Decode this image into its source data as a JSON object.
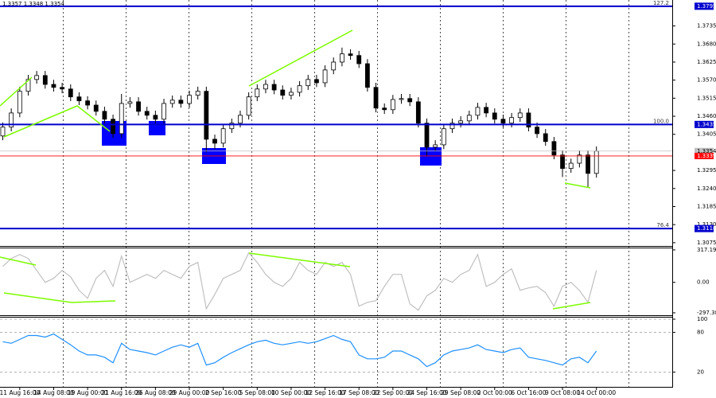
{
  "chart_data": [
    {
      "type": "candlestick",
      "header": "1.3357 1.3348 1.3354",
      "color": "#000000",
      "open": [
        1.34,
        1.3427,
        1.347,
        1.3536,
        1.3572,
        1.3584,
        1.3557,
        1.3548,
        1.3543,
        1.3519,
        1.3507,
        1.3494,
        1.3475,
        1.3451,
        1.3407,
        1.3499,
        1.3504,
        1.3475,
        1.3463,
        1.3451,
        1.3499,
        1.3509,
        1.3499,
        1.3524,
        1.3536,
        1.339,
        1.3378,
        1.3422,
        1.3439,
        1.3463,
        1.3519,
        1.3543,
        1.3557,
        1.354,
        1.3524,
        1.3533,
        1.3553,
        1.3572,
        1.3562,
        1.3601,
        1.3625,
        1.365,
        1.3645,
        1.362,
        1.3548,
        1.3485,
        1.348,
        1.3511,
        1.3514,
        1.3504,
        1.3439,
        1.3366,
        1.3373,
        1.3422,
        1.3439,
        1.3446,
        1.3463,
        1.3487,
        1.347,
        1.3451,
        1.3439,
        1.3456,
        1.347,
        1.3427,
        1.3407,
        1.3383,
        1.3342,
        1.3301,
        1.3317,
        1.3342,
        1.3286
      ],
      "high": [
        1.3441,
        1.3484,
        1.355,
        1.3586,
        1.3598,
        1.3598,
        1.3571,
        1.3562,
        1.3557,
        1.3533,
        1.3521,
        1.3508,
        1.3489,
        1.3465,
        1.3528,
        1.3518,
        1.3518,
        1.3489,
        1.3477,
        1.3513,
        1.3523,
        1.3523,
        1.3538,
        1.355,
        1.355,
        1.3404,
        1.3436,
        1.3453,
        1.3477,
        1.3533,
        1.3557,
        1.3571,
        1.3571,
        1.3554,
        1.3547,
        1.3567,
        1.3586,
        1.3586,
        1.3615,
        1.3639,
        1.3669,
        1.3664,
        1.3659,
        1.3634,
        1.3562,
        1.3499,
        1.3525,
        1.3528,
        1.3528,
        1.3518,
        1.3453,
        1.3387,
        1.3436,
        1.3453,
        1.346,
        1.3477,
        1.3501,
        1.3501,
        1.3484,
        1.3465,
        1.347,
        1.3484,
        1.3484,
        1.3441,
        1.3421,
        1.3397,
        1.3356,
        1.3331,
        1.3356,
        1.3356,
        1.3368
      ],
      "low": [
        1.3387,
        1.3414,
        1.3457,
        1.3523,
        1.3559,
        1.3544,
        1.3535,
        1.353,
        1.3506,
        1.3494,
        1.3481,
        1.3462,
        1.3438,
        1.3394,
        1.3394,
        1.3486,
        1.3462,
        1.345,
        1.3438,
        1.3438,
        1.3486,
        1.3486,
        1.3486,
        1.3511,
        1.335,
        1.336,
        1.3365,
        1.3409,
        1.3426,
        1.345,
        1.3506,
        1.353,
        1.3527,
        1.3511,
        1.3511,
        1.352,
        1.354,
        1.3549,
        1.3549,
        1.3588,
        1.3612,
        1.3632,
        1.3607,
        1.3535,
        1.3472,
        1.3467,
        1.3467,
        1.3498,
        1.3491,
        1.3426,
        1.334,
        1.3353,
        1.336,
        1.3409,
        1.3426,
        1.3433,
        1.345,
        1.3457,
        1.3438,
        1.3426,
        1.3426,
        1.3443,
        1.3414,
        1.3394,
        1.337,
        1.3329,
        1.3275,
        1.3288,
        1.3304,
        1.3244,
        1.3273
      ],
      "close": [
        1.3427,
        1.347,
        1.3536,
        1.3572,
        1.3584,
        1.3557,
        1.3548,
        1.3543,
        1.3519,
        1.3507,
        1.3494,
        1.3475,
        1.3451,
        1.3407,
        1.3499,
        1.3504,
        1.3475,
        1.3463,
        1.3451,
        1.3499,
        1.3509,
        1.3499,
        1.3524,
        1.3536,
        1.339,
        1.3378,
        1.3422,
        1.3439,
        1.3463,
        1.3519,
        1.3543,
        1.3557,
        1.354,
        1.3524,
        1.3533,
        1.3553,
        1.3572,
        1.3562,
        1.3601,
        1.3625,
        1.365,
        1.3645,
        1.362,
        1.3548,
        1.3485,
        1.348,
        1.3511,
        1.3514,
        1.3504,
        1.3439,
        1.3366,
        1.3373,
        1.3422,
        1.3439,
        1.3446,
        1.3463,
        1.3487,
        1.347,
        1.3451,
        1.3439,
        1.3456,
        1.347,
        1.3427,
        1.3407,
        1.3383,
        1.3342,
        1.3301,
        1.3317,
        1.3342,
        1.3286,
        1.3354
      ],
      "ylim": [
        1.3065,
        1.3814
      ],
      "yticks": [
        1.3075,
        {
          "value": 1.313,
          "label": "1.3130"
        },
        1.3185,
        {
          "value": 1.324,
          "label": "1.3240"
        },
        1.3295,
        1.3405,
        {
          "value": 1.346,
          "label": "1.3460"
        },
        1.3515,
        {
          "value": 1.357,
          "label": "1.3570"
        },
        1.3625,
        {
          "value": 1.368,
          "label": "1.3680"
        },
        1.3735
      ],
      "levels": [
        {
          "value": 1.3795,
          "label": "127.2"
        },
        {
          "value": 1.3435,
          "label": "100.0"
        },
        {
          "value": 1.3118,
          "label": "76.4"
        }
      ],
      "level_color": "#0000cd",
      "price_lines": [
        {
          "value": 1.3354,
          "color": "#c0c0c0"
        },
        {
          "value": 1.3339,
          "color": "#ff0000"
        }
      ]
    },
    {
      "type": "line",
      "color": "#c0c0c0",
      "values": [
        156,
        233,
        272,
        233,
        117,
        0,
        39,
        117,
        54,
        -78,
        -156,
        39,
        117,
        -39,
        257,
        0,
        39,
        78,
        39,
        117,
        78,
        39,
        156,
        195,
        -257,
        -117,
        39,
        78,
        117,
        288,
        195,
        78,
        0,
        -39,
        39,
        195,
        117,
        78,
        195,
        156,
        195,
        78,
        -233,
        -195,
        -179,
        -39,
        78,
        78,
        -210,
        -272,
        -132,
        -78,
        39,
        0,
        78,
        117,
        272,
        -39,
        0,
        78,
        132,
        -78,
        -54,
        -39,
        -101,
        -233,
        -39,
        0,
        -78,
        -195,
        117
      ],
      "ylim": [
        -321,
        340
      ],
      "yticks": [
        317.1938,
        {
          "value": 0,
          "label": "0.00"
        },
        -297.386
      ]
    },
    {
      "type": "line",
      "color": "#1e90ff",
      "grid": true,
      "categories": [
        null,
        null,
        "11 Aug 16:00",
        null,
        null,
        null,
        "14 Aug 08:00",
        null,
        null,
        null,
        "19 Aug 00:00",
        null,
        null,
        null,
        "21 Aug 16:00",
        null,
        null,
        null,
        "26 Aug 08:00",
        null,
        null,
        null,
        "29 Aug 00:00",
        null,
        null,
        null,
        "2 Sep 16:00",
        null,
        null,
        null,
        "5 Sep 08:00",
        null,
        null,
        null,
        "10 Sep 00:00",
        null,
        null,
        null,
        "12 Sep 16:00",
        null,
        null,
        null,
        "17 Sep 08:00",
        null,
        null,
        null,
        "22 Sep 00:00",
        null,
        null,
        null,
        "24 Sep 16:00",
        null,
        null,
        null,
        "29 Sep 08:00",
        null,
        null,
        null,
        "2 Oct 00:00",
        null,
        null,
        null,
        "6 Oct 16:00",
        null,
        null,
        null,
        "9 Oct 08:00",
        null,
        null,
        null,
        "14 Oct 00:00"
      ],
      "values": [
        65.9,
        63.5,
        69.4,
        75.3,
        75.3,
        72.9,
        77.6,
        69.4,
        61.2,
        51.8,
        45.9,
        45.9,
        42.4,
        34.1,
        63.5,
        54.1,
        51.8,
        49.4,
        45.9,
        51.8,
        57.6,
        61.2,
        57.6,
        63.5,
        30.6,
        34.1,
        42.4,
        49.4,
        55.3,
        61.2,
        65.9,
        68.2,
        63.5,
        61.2,
        63.5,
        65.9,
        63.5,
        65.9,
        70.6,
        75.3,
        69.4,
        65.9,
        45.9,
        40.0,
        40.0,
        42.4,
        51.8,
        51.8,
        45.9,
        40.0,
        28.2,
        34.1,
        45.9,
        51.8,
        54.1,
        56.5,
        61.2,
        54.1,
        51.8,
        49.4,
        54.1,
        56.5,
        42.4,
        40.0,
        37.6,
        34.1,
        30.6,
        40.0,
        42.4,
        34.1,
        51.8
      ],
      "ylim": [
        -2.4,
        103.6
      ],
      "yticks": [
        100,
        80,
        20
      ]
    }
  ]
}
